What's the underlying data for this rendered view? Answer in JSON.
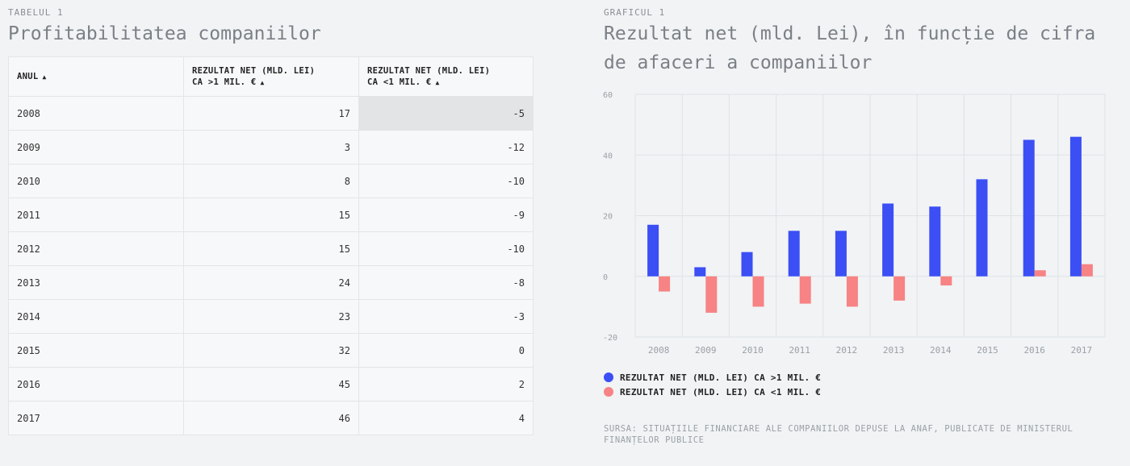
{
  "table": {
    "eyebrow": "TABELUL 1",
    "title": "Profitabilitatea companiilor",
    "columns": [
      {
        "line1": "ANUL",
        "line2": ""
      },
      {
        "line1": "REZULTAT NET (MLD. LEI)",
        "line2": "CA >1 MIL. €"
      },
      {
        "line1": "REZULTAT NET (MLD. LEI)",
        "line2": "CA <1 MIL. €"
      }
    ],
    "rows": [
      {
        "year": "2008",
        "large": "17",
        "small": "-5"
      },
      {
        "year": "2009",
        "large": "3",
        "small": "-12"
      },
      {
        "year": "2010",
        "large": "8",
        "small": "-10"
      },
      {
        "year": "2011",
        "large": "15",
        "small": "-9"
      },
      {
        "year": "2012",
        "large": "15",
        "small": "-10"
      },
      {
        "year": "2013",
        "large": "24",
        "small": "-8"
      },
      {
        "year": "2014",
        "large": "23",
        "small": "-3"
      },
      {
        "year": "2015",
        "large": "32",
        "small": "0"
      },
      {
        "year": "2016",
        "large": "45",
        "small": "2"
      },
      {
        "year": "2017",
        "large": "46",
        "small": "4"
      }
    ]
  },
  "chart": {
    "eyebrow": "GRAFICUL 1",
    "title_line1": "Rezultat net (mld. Lei), în funcție de cifra",
    "title_line2": "de afaceri a companiilor",
    "source": "SURSA: SITUAȚIILE FINANCIARE ALE COMPANIILOR DEPUSE LA ANAF, PUBLICATE DE MINISTERUL FINANȚELOR PUBLICE"
  },
  "chart_data": {
    "type": "bar",
    "categories": [
      "2008",
      "2009",
      "2010",
      "2011",
      "2012",
      "2013",
      "2014",
      "2015",
      "2016",
      "2017"
    ],
    "series": [
      {
        "name": "REZULTAT NET (MLD. LEI) CA >1 MIL. €",
        "color": "#3b4ff5",
        "values": [
          17,
          3,
          8,
          15,
          15,
          24,
          23,
          32,
          45,
          46
        ]
      },
      {
        "name": "REZULTAT NET (MLD. LEI) CA <1 MIL. €",
        "color": "#f78384",
        "values": [
          -5,
          -12,
          -10,
          -9,
          -10,
          -8,
          -3,
          0,
          2,
          4
        ]
      }
    ],
    "yticks": [
      "60",
      "40",
      "20",
      "0",
      "-20"
    ],
    "ylim": [
      -20,
      60
    ],
    "grid": true,
    "legend": "bottom-left"
  }
}
